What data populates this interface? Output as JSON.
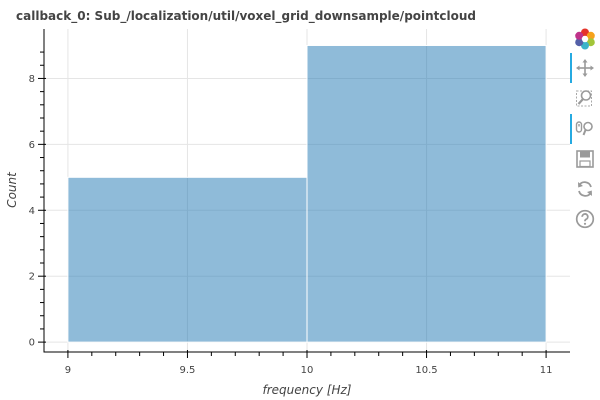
{
  "chart_data": {
    "type": "bar",
    "title": "callback_0: Sub_/localization/util/voxel_grid_downsample/pointcloud",
    "xlabel": "frequency [Hz]",
    "ylabel": "Count",
    "bins": [
      {
        "x_start": 9,
        "x_end": 10,
        "count": 5
      },
      {
        "x_start": 10,
        "x_end": 11,
        "count": 9
      }
    ],
    "xlim": [
      8.9,
      11.1
    ],
    "ylim": [
      -0.3,
      9.5
    ],
    "x_ticks": [
      9,
      9.5,
      10,
      10.5,
      11
    ],
    "x_tick_labels": [
      "9",
      "9.5",
      "10",
      "10.5",
      "11"
    ],
    "y_ticks": [
      0,
      2,
      4,
      6,
      8
    ],
    "y_tick_labels": [
      "0",
      "2",
      "4",
      "6",
      "8"
    ],
    "grid": true,
    "legend": "none",
    "bar_color": "#1f77b4"
  },
  "toolbar": {
    "items": [
      {
        "name": "bokeh-logo-icon",
        "active": false
      },
      {
        "name": "pan-tool-icon",
        "active": true
      },
      {
        "name": "box-zoom-tool-icon",
        "active": false
      },
      {
        "name": "wheel-zoom-tool-icon",
        "active": true
      },
      {
        "name": "save-tool-icon",
        "active": false
      },
      {
        "name": "reset-tool-icon",
        "active": false
      },
      {
        "name": "help-tool-icon",
        "active": false
      }
    ]
  }
}
